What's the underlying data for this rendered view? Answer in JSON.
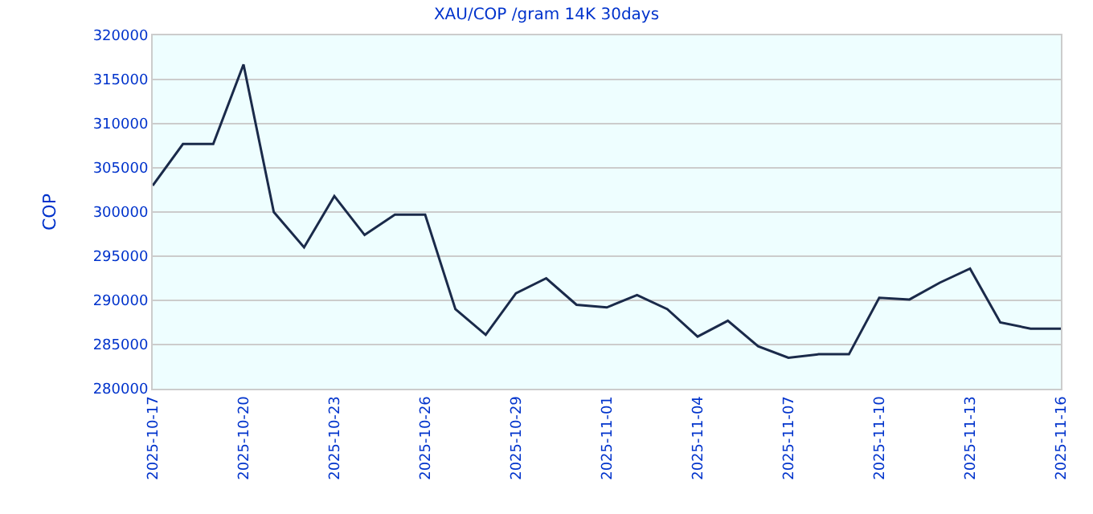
{
  "chart_data": {
    "type": "line",
    "title": "XAU/COP /gram 14K 30days",
    "ylabel": "COP",
    "x": [
      "2025-10-17",
      "2025-10-18",
      "2025-10-19",
      "2025-10-20",
      "2025-10-21",
      "2025-10-22",
      "2025-10-23",
      "2025-10-24",
      "2025-10-25",
      "2025-10-26",
      "2025-10-27",
      "2025-10-28",
      "2025-10-29",
      "2025-10-30",
      "2025-10-31",
      "2025-11-01",
      "2025-11-02",
      "2025-11-03",
      "2025-11-04",
      "2025-11-05",
      "2025-11-06",
      "2025-11-07",
      "2025-11-08",
      "2025-11-09",
      "2025-11-10",
      "2025-11-11",
      "2025-11-12",
      "2025-11-13",
      "2025-11-14",
      "2025-11-15",
      "2025-11-16"
    ],
    "series": [
      {
        "color": "#1a2a4a",
        "values": [
          303000,
          307700,
          307700,
          316700,
          300000,
          296000,
          301800,
          297400,
          299700,
          299700,
          289000,
          286100,
          290800,
          292500,
          289500,
          289200,
          290600,
          289000,
          285900,
          287700,
          284800,
          283500,
          283900,
          283900,
          290300,
          290100,
          292000,
          293600,
          287500,
          286800,
          286800
        ]
      }
    ],
    "xlim": [
      "2025-10-17",
      "2025-11-16"
    ],
    "xticks": [
      "2025-10-17",
      "2025-10-20",
      "2025-10-23",
      "2025-10-26",
      "2025-10-29",
      "2025-11-01",
      "2025-11-04",
      "2025-11-07",
      "2025-11-10",
      "2025-11-13",
      "2025-11-16"
    ],
    "ylim": [
      280000,
      320000
    ],
    "yticks": [
      280000,
      285000,
      290000,
      295000,
      300000,
      305000,
      310000,
      315000,
      320000
    ],
    "grid": "y",
    "marker": "none",
    "line_style": "solid"
  }
}
